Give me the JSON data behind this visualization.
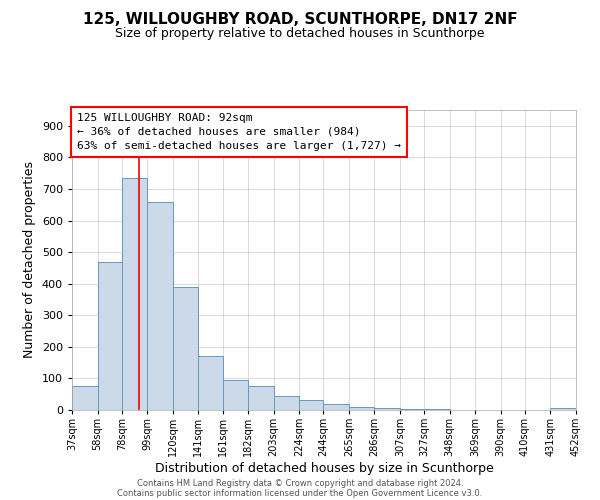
{
  "title": "125, WILLOUGHBY ROAD, SCUNTHORPE, DN17 2NF",
  "subtitle": "Size of property relative to detached houses in Scunthorpe",
  "xlabel": "Distribution of detached houses by size in Scunthorpe",
  "ylabel": "Number of detached properties",
  "bar_color": "#ccd9e8",
  "bar_edge_color": "#6699bb",
  "background_color": "#ffffff",
  "grid_color": "#cccccc",
  "red_line_x": 92,
  "annotation_line1": "125 WILLOUGHBY ROAD: 92sqm",
  "annotation_line2": "← 36% of detached houses are smaller (984)",
  "annotation_line3": "63% of semi-detached houses are larger (1,727) →",
  "footer_line1": "Contains HM Land Registry data © Crown copyright and database right 2024.",
  "footer_line2": "Contains public sector information licensed under the Open Government Licence v3.0.",
  "bin_edges": [
    37,
    58,
    78,
    99,
    120,
    141,
    161,
    182,
    203,
    224,
    244,
    265,
    286,
    307,
    327,
    348,
    369,
    390,
    410,
    431,
    452
  ],
  "bin_counts": [
    75,
    470,
    735,
    660,
    390,
    172,
    96,
    75,
    45,
    32,
    18,
    10,
    5,
    3,
    2,
    1,
    1,
    0,
    0,
    5
  ],
  "ylim": [
    0,
    950
  ],
  "yticks": [
    0,
    100,
    200,
    300,
    400,
    500,
    600,
    700,
    800,
    900
  ]
}
